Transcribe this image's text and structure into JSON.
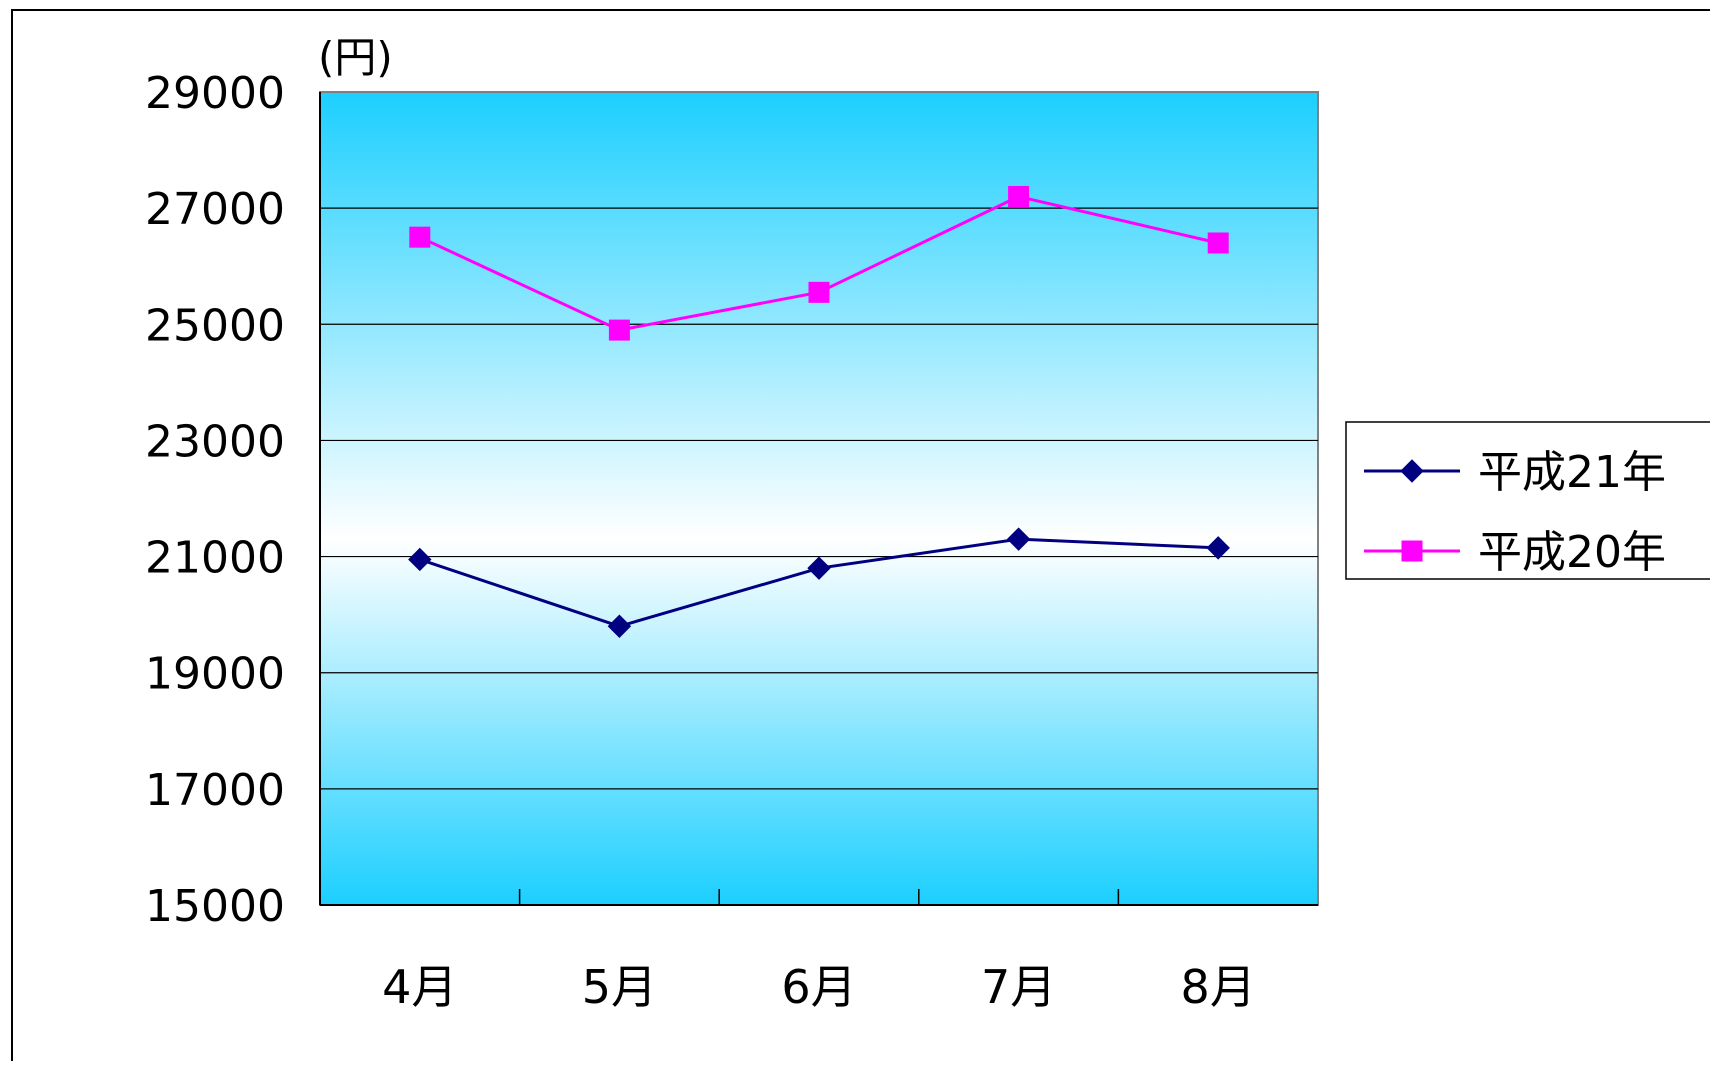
{
  "chart_data": {
    "type": "line",
    "title": "",
    "xlabel": "",
    "ylabel": "",
    "unit_label": "(円)",
    "categories": [
      "4月",
      "5月",
      "6月",
      "7月",
      "8月"
    ],
    "ylim": [
      15000,
      29000
    ],
    "yticks": [
      "15000",
      "17000",
      "19000",
      "21000",
      "23000",
      "25000",
      "27000",
      "29000"
    ],
    "grid": true,
    "legend_position": "right",
    "series": [
      {
        "name": "平成21年",
        "values": [
          20950,
          19800,
          20800,
          21300,
          21150
        ],
        "color": "#000080",
        "marker": "diamond"
      },
      {
        "name": "平成20年",
        "values": [
          26500,
          24900,
          25550,
          27200,
          26400
        ],
        "color": "#ff00ff",
        "marker": "square"
      }
    ],
    "plot_background": {
      "edge_color": "#1ccfff",
      "center_color": "#ffffff"
    }
  }
}
